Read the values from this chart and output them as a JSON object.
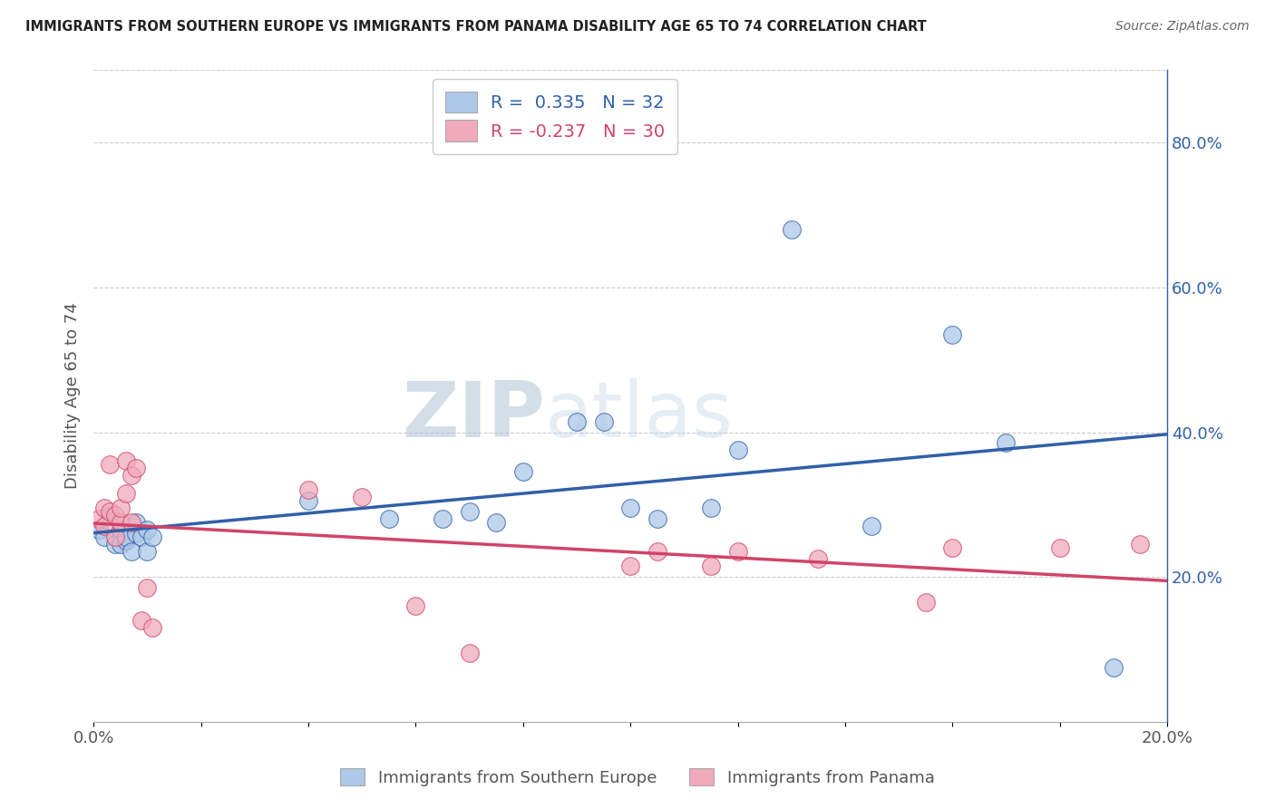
{
  "title": "IMMIGRANTS FROM SOUTHERN EUROPE VS IMMIGRANTS FROM PANAMA DISABILITY AGE 65 TO 74 CORRELATION CHART",
  "source": "Source: ZipAtlas.com",
  "ylabel": "Disability Age 65 to 74",
  "xlim": [
    0.0,
    0.2
  ],
  "ylim": [
    0.0,
    0.9
  ],
  "ytick_labels_right": [
    "20.0%",
    "40.0%",
    "60.0%",
    "80.0%"
  ],
  "ytick_vals_right": [
    0.2,
    0.4,
    0.6,
    0.8
  ],
  "blue_R": "0.335",
  "blue_N": "32",
  "pink_R": "-0.237",
  "pink_N": "30",
  "blue_color": "#adc8e8",
  "blue_line_color": "#3060a8",
  "pink_color": "#f0aabb",
  "pink_line_color": "#d04468",
  "watermark_zip": "ZIP",
  "watermark_atlas": "atlas",
  "legend_label_blue": "Immigrants from Southern Europe",
  "legend_label_pink": "Immigrants from Panama",
  "blue_x": [
    0.001,
    0.002,
    0.003,
    0.004,
    0.005,
    0.005,
    0.006,
    0.006,
    0.007,
    0.008,
    0.008,
    0.009,
    0.01,
    0.01,
    0.011,
    0.04,
    0.055,
    0.065,
    0.07,
    0.075,
    0.08,
    0.09,
    0.095,
    0.1,
    0.105,
    0.115,
    0.12,
    0.13,
    0.145,
    0.16,
    0.17,
    0.19
  ],
  "blue_y": [
    0.265,
    0.255,
    0.285,
    0.245,
    0.265,
    0.245,
    0.25,
    0.255,
    0.235,
    0.26,
    0.275,
    0.255,
    0.235,
    0.265,
    0.255,
    0.305,
    0.28,
    0.28,
    0.29,
    0.275,
    0.345,
    0.415,
    0.415,
    0.295,
    0.28,
    0.295,
    0.375,
    0.68,
    0.27,
    0.535,
    0.385,
    0.075
  ],
  "pink_x": [
    0.001,
    0.002,
    0.002,
    0.003,
    0.003,
    0.004,
    0.004,
    0.005,
    0.005,
    0.006,
    0.006,
    0.007,
    0.007,
    0.008,
    0.009,
    0.01,
    0.011,
    0.04,
    0.05,
    0.06,
    0.07,
    0.1,
    0.105,
    0.115,
    0.12,
    0.135,
    0.155,
    0.16,
    0.18,
    0.195
  ],
  "pink_y": [
    0.28,
    0.295,
    0.27,
    0.29,
    0.355,
    0.255,
    0.285,
    0.275,
    0.295,
    0.315,
    0.36,
    0.275,
    0.34,
    0.35,
    0.14,
    0.185,
    0.13,
    0.32,
    0.31,
    0.16,
    0.095,
    0.215,
    0.235,
    0.215,
    0.235,
    0.225,
    0.165,
    0.24,
    0.24,
    0.245
  ]
}
